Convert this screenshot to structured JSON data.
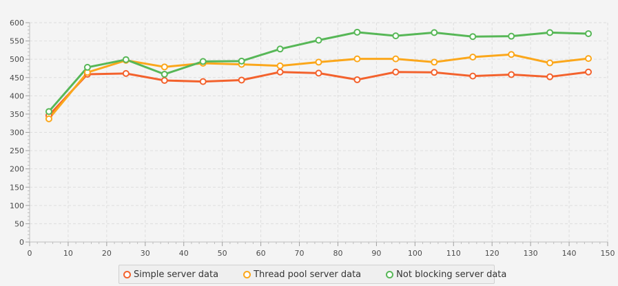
{
  "chart_data": {
    "type": "line",
    "xlim": [
      0,
      150
    ],
    "ylim": [
      0,
      600
    ],
    "x_ticks": [
      0,
      10,
      20,
      30,
      40,
      50,
      60,
      70,
      80,
      90,
      100,
      110,
      120,
      130,
      140,
      150
    ],
    "y_ticks": [
      0,
      50,
      100,
      150,
      200,
      250,
      300,
      350,
      400,
      450,
      500,
      550,
      600
    ],
    "grid": true,
    "legend_position": "bottom",
    "x": [
      5,
      15,
      25,
      35,
      45,
      55,
      65,
      75,
      85,
      95,
      105,
      115,
      125,
      135,
      145
    ],
    "series": [
      {
        "name": "Simple server data",
        "color": "#f3622d",
        "values": [
          346,
          459,
          461,
          442,
          439,
          443,
          465,
          462,
          444,
          465,
          464,
          454,
          458,
          452,
          465
        ]
      },
      {
        "name": "Thread pool server data",
        "color": "#fba71b",
        "values": [
          337,
          464,
          497,
          479,
          489,
          486,
          482,
          492,
          501,
          501,
          492,
          506,
          513,
          490,
          502
        ]
      },
      {
        "name": "Not blocking server data",
        "color": "#57b757",
        "values": [
          357,
          478,
          499,
          459,
          494,
          495,
          528,
          552,
          574,
          564,
          573,
          562,
          563,
          573,
          570
        ]
      }
    ]
  }
}
